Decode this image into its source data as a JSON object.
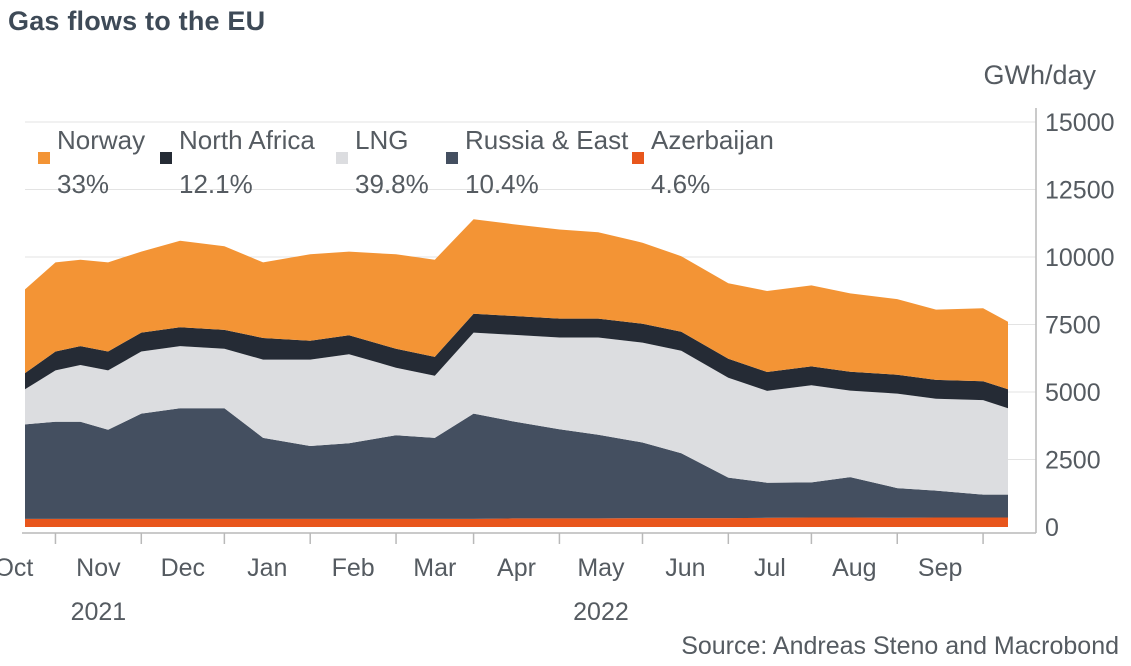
{
  "title": "Gas flows to the EU",
  "unit": "GWh/day",
  "source": "Source: Andreas Steno and Macrobond",
  "colors": {
    "azerbaijan": "#e8561c",
    "russia": "#444f60",
    "lng": "#dcdde0",
    "north_africa": "#252b35",
    "norway": "#f39435"
  },
  "chart_data": {
    "type": "area",
    "stacked": true,
    "ylabel": "GWh/day",
    "ylim": [
      0,
      15000
    ],
    "yticks": [
      0,
      2500,
      5000,
      7500,
      10000,
      12500,
      15000
    ],
    "y_axis_side": "right",
    "grid": true,
    "legend_position": "top-left",
    "x_labels": [
      "Oct",
      "Nov",
      "Dec",
      "Jan",
      "Feb",
      "Mar",
      "Apr",
      "May",
      "Jun",
      "Jul",
      "Aug",
      "Sep"
    ],
    "year_labels": [
      {
        "label": "2021",
        "under": "Nov"
      },
      {
        "label": "2022",
        "under": "May"
      }
    ],
    "x": [
      "2021-09-20",
      "2021-10-01",
      "2021-10-10",
      "2021-10-20",
      "2021-11-01",
      "2021-11-15",
      "2021-12-01",
      "2021-12-15",
      "2022-01-01",
      "2022-01-15",
      "2022-02-01",
      "2022-02-15",
      "2022-03-01",
      "2022-03-15",
      "2022-04-01",
      "2022-04-15",
      "2022-05-01",
      "2022-05-15",
      "2022-06-01",
      "2022-06-15",
      "2022-07-01",
      "2022-07-15",
      "2022-08-01",
      "2022-08-15",
      "2022-09-01",
      "2022-09-10"
    ],
    "series": [
      {
        "name": "Azerbaijan",
        "key": "azerbaijan",
        "share": "4.6%",
        "values": [
          300,
          300,
          300,
          300,
          300,
          300,
          300,
          300,
          300,
          300,
          300,
          300,
          300,
          320,
          320,
          320,
          330,
          330,
          330,
          340,
          350,
          350,
          340,
          350,
          350,
          350
        ]
      },
      {
        "name": "Russia & East",
        "key": "russia",
        "share": "10.4%",
        "values": [
          3500,
          3600,
          3600,
          3300,
          3900,
          4100,
          4100,
          3000,
          2700,
          2800,
          3100,
          3000,
          3900,
          3600,
          3300,
          3100,
          2800,
          2400,
          1500,
          1300,
          1300,
          1500,
          1100,
          1000,
          850,
          850
        ]
      },
      {
        "name": "LNG",
        "key": "lng",
        "share": "39.8%",
        "values": [
          1300,
          1900,
          2100,
          2200,
          2300,
          2300,
          2200,
          2900,
          3200,
          3300,
          2500,
          2300,
          3000,
          3200,
          3400,
          3600,
          3700,
          3800,
          3700,
          3400,
          3600,
          3200,
          3500,
          3400,
          3500,
          3200
        ]
      },
      {
        "name": "North Africa",
        "key": "north_africa",
        "share": "12.1%",
        "values": [
          600,
          700,
          700,
          700,
          700,
          700,
          700,
          800,
          700,
          700,
          700,
          700,
          700,
          700,
          700,
          700,
          700,
          700,
          700,
          700,
          700,
          700,
          700,
          700,
          700,
          700
        ]
      },
      {
        "name": "Norway",
        "key": "norway",
        "share": "33%",
        "values": [
          3100,
          3300,
          3200,
          3300,
          3000,
          3200,
          3100,
          2800,
          3200,
          3100,
          3500,
          3600,
          3500,
          3400,
          3300,
          3200,
          3000,
          2800,
          2800,
          3000,
          3000,
          2900,
          2800,
          2600,
          2700,
          2500
        ]
      }
    ]
  }
}
